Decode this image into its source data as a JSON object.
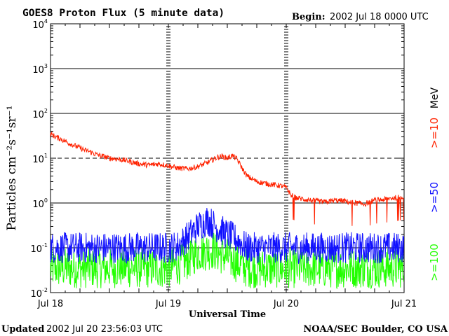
{
  "chart_data": {
    "type": "line",
    "title": "GOES8 Proton Flux (5 minute data)",
    "begin_label": "Begin:",
    "begin_value": "2002 Jul 18 0000 UTC",
    "ylabel": "Particles cm⁻²s⁻¹sr⁻¹",
    "xlabel": "Universal Time",
    "yscale": "log",
    "ylim": [
      0.01,
      10000
    ],
    "y_ticks": [
      {
        "base": "10",
        "exp": "-2",
        "value": 0.01
      },
      {
        "base": "10",
        "exp": "-1",
        "value": 0.1
      },
      {
        "base": "10",
        "exp": "0",
        "value": 1
      },
      {
        "base": "10",
        "exp": "1",
        "value": 10
      },
      {
        "base": "10",
        "exp": "2",
        "value": 100
      },
      {
        "base": "10",
        "exp": "3",
        "value": 1000
      },
      {
        "base": "10",
        "exp": "4",
        "value": 10000
      }
    ],
    "x_range_hours": [
      0,
      72
    ],
    "x_ticks": [
      {
        "label": "Jul 18",
        "hour": 0
      },
      {
        "label": "Jul 19",
        "hour": 24
      },
      {
        "label": "Jul 20",
        "hour": 48
      },
      {
        "label": "Jul 21",
        "hour": 72
      }
    ],
    "threshold_line_value": 10,
    "legend_unit": "MeV",
    "series": [
      {
        "name": ">=10",
        "color": "#ff2200",
        "points": [
          [
            0,
            35
          ],
          [
            1,
            30
          ],
          [
            2,
            27
          ],
          [
            3,
            24
          ],
          [
            4,
            21
          ],
          [
            5,
            19
          ],
          [
            6,
            17
          ],
          [
            7,
            15
          ],
          [
            8,
            14
          ],
          [
            9,
            12.5
          ],
          [
            10,
            11.5
          ],
          [
            11,
            10.8
          ],
          [
            12,
            10
          ],
          [
            14,
            9.5
          ],
          [
            16,
            8.5
          ],
          [
            18,
            7.5
          ],
          [
            20,
            7
          ],
          [
            22,
            7.5
          ],
          [
            24,
            6.8
          ],
          [
            26,
            6
          ],
          [
            28,
            5.8
          ],
          [
            30,
            6.5
          ],
          [
            32,
            8
          ],
          [
            34,
            10.5
          ],
          [
            35,
            11
          ],
          [
            36,
            10
          ],
          [
            37,
            11.5
          ],
          [
            38,
            9.5
          ],
          [
            39,
            6
          ],
          [
            40,
            4
          ],
          [
            42,
            3
          ],
          [
            44,
            2.7
          ],
          [
            46,
            2.5
          ],
          [
            47,
            2.4
          ],
          [
            48,
            2.2
          ],
          [
            49,
            1.5
          ],
          [
            50,
            1.3
          ],
          [
            52,
            1.2
          ],
          [
            54,
            1.1
          ],
          [
            56,
            1.05
          ],
          [
            58,
            1.15
          ],
          [
            60,
            1.1
          ],
          [
            62,
            1.0
          ],
          [
            64,
            0.95
          ],
          [
            66,
            1.15
          ],
          [
            68,
            1.2
          ],
          [
            70,
            1.3
          ],
          [
            72,
            1.4
          ]
        ]
      },
      {
        "name": ">=50",
        "color": "#1111ff",
        "points": [
          [
            0,
            0.1
          ],
          [
            4,
            0.1
          ],
          [
            8,
            0.1
          ],
          [
            12,
            0.1
          ],
          [
            16,
            0.1
          ],
          [
            20,
            0.1
          ],
          [
            24,
            0.1
          ],
          [
            26,
            0.11
          ],
          [
            28,
            0.18
          ],
          [
            30,
            0.3
          ],
          [
            32,
            0.42
          ],
          [
            34,
            0.28
          ],
          [
            36,
            0.2
          ],
          [
            38,
            0.15
          ],
          [
            40,
            0.1
          ],
          [
            44,
            0.1
          ],
          [
            48,
            0.1
          ],
          [
            52,
            0.1
          ],
          [
            56,
            0.1
          ],
          [
            60,
            0.1
          ],
          [
            64,
            0.1
          ],
          [
            68,
            0.1
          ],
          [
            72,
            0.1
          ]
        ]
      },
      {
        "name": ">=100",
        "color": "#22ff00",
        "points": [
          [
            0,
            0.035
          ],
          [
            8,
            0.035
          ],
          [
            16,
            0.035
          ],
          [
            24,
            0.035
          ],
          [
            27,
            0.045
          ],
          [
            30,
            0.08
          ],
          [
            33,
            0.09
          ],
          [
            36,
            0.06
          ],
          [
            40,
            0.035
          ],
          [
            48,
            0.035
          ],
          [
            56,
            0.035
          ],
          [
            64,
            0.035
          ],
          [
            72,
            0.035
          ]
        ]
      }
    ]
  },
  "footer": {
    "updated_label": "Updated",
    "updated_value": "2002 Jul 20 23:56:03 UTC",
    "credit": "NOAA/SEC Boulder, CO USA"
  }
}
